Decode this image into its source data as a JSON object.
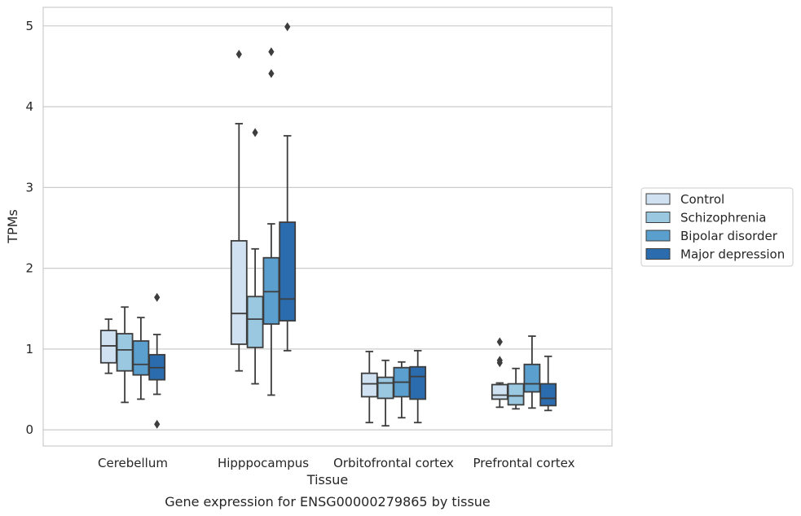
{
  "chart_data": {
    "type": "boxplot",
    "xlabel": "Tissue",
    "ylabel": "TPMs",
    "caption": "Gene expression for ENSG00000279865 by tissue",
    "ylim": [
      -0.2,
      5.23
    ],
    "yticks": [
      0,
      1,
      2,
      3,
      4,
      5
    ],
    "grid": "horizontal",
    "legend_position": "right",
    "categories": [
      "Cerebellum",
      "Hipppocampus",
      "Orbitofrontal cortex",
      "Prefrontal cortex"
    ],
    "series": [
      {
        "name": "Control",
        "color": "#d0e2f2",
        "boxes": [
          {
            "whislo": 0.7,
            "q1": 0.83,
            "med": 1.04,
            "q3": 1.23,
            "whishi": 1.37,
            "fliers": []
          },
          {
            "whislo": 0.73,
            "q1": 1.06,
            "med": 1.44,
            "q3": 2.34,
            "whishi": 3.79,
            "fliers": [
              4.65
            ]
          },
          {
            "whislo": 0.09,
            "q1": 0.41,
            "med": 0.57,
            "q3": 0.7,
            "whishi": 0.97,
            "fliers": []
          },
          {
            "whislo": 0.28,
            "q1": 0.38,
            "med": 0.43,
            "q3": 0.56,
            "whishi": 0.58,
            "fliers": [
              0.83,
              0.86,
              1.09
            ]
          }
        ]
      },
      {
        "name": "Schizophrenia",
        "color": "#9ac8e0",
        "boxes": [
          {
            "whislo": 0.34,
            "q1": 0.73,
            "med": 0.99,
            "q3": 1.19,
            "whishi": 1.52,
            "fliers": []
          },
          {
            "whislo": 0.57,
            "q1": 1.02,
            "med": 1.37,
            "q3": 1.65,
            "whishi": 2.24,
            "fliers": [
              3.68
            ]
          },
          {
            "whislo": 0.05,
            "q1": 0.39,
            "med": 0.58,
            "q3": 0.65,
            "whishi": 0.86,
            "fliers": []
          },
          {
            "whislo": 0.26,
            "q1": 0.31,
            "med": 0.42,
            "q3": 0.57,
            "whishi": 0.76,
            "fliers": []
          }
        ]
      },
      {
        "name": "Bipolar disorder",
        "color": "#5a9fcd",
        "boxes": [
          {
            "whislo": 0.38,
            "q1": 0.68,
            "med": 0.81,
            "q3": 1.1,
            "whishi": 1.39,
            "fliers": []
          },
          {
            "whislo": 0.43,
            "q1": 1.31,
            "med": 1.71,
            "q3": 2.13,
            "whishi": 2.55,
            "fliers": [
              4.41,
              4.68
            ]
          },
          {
            "whislo": 0.15,
            "q1": 0.41,
            "med": 0.59,
            "q3": 0.77,
            "whishi": 0.84,
            "fliers": []
          },
          {
            "whislo": 0.27,
            "q1": 0.47,
            "med": 0.57,
            "q3": 0.81,
            "whishi": 1.16,
            "fliers": []
          }
        ]
      },
      {
        "name": "Major depression",
        "color": "#2a6cae",
        "boxes": [
          {
            "whislo": 0.44,
            "q1": 0.62,
            "med": 0.77,
            "q3": 0.93,
            "whishi": 1.18,
            "fliers": [
              0.07,
              1.64
            ]
          },
          {
            "whislo": 0.98,
            "q1": 1.35,
            "med": 1.62,
            "q3": 2.57,
            "whishi": 3.64,
            "fliers": [
              4.99
            ]
          },
          {
            "whislo": 0.09,
            "q1": 0.38,
            "med": 0.66,
            "q3": 0.78,
            "whishi": 0.98,
            "fliers": []
          },
          {
            "whislo": 0.24,
            "q1": 0.3,
            "med": 0.39,
            "q3": 0.57,
            "whishi": 0.91,
            "fliers": []
          }
        ]
      }
    ]
  }
}
